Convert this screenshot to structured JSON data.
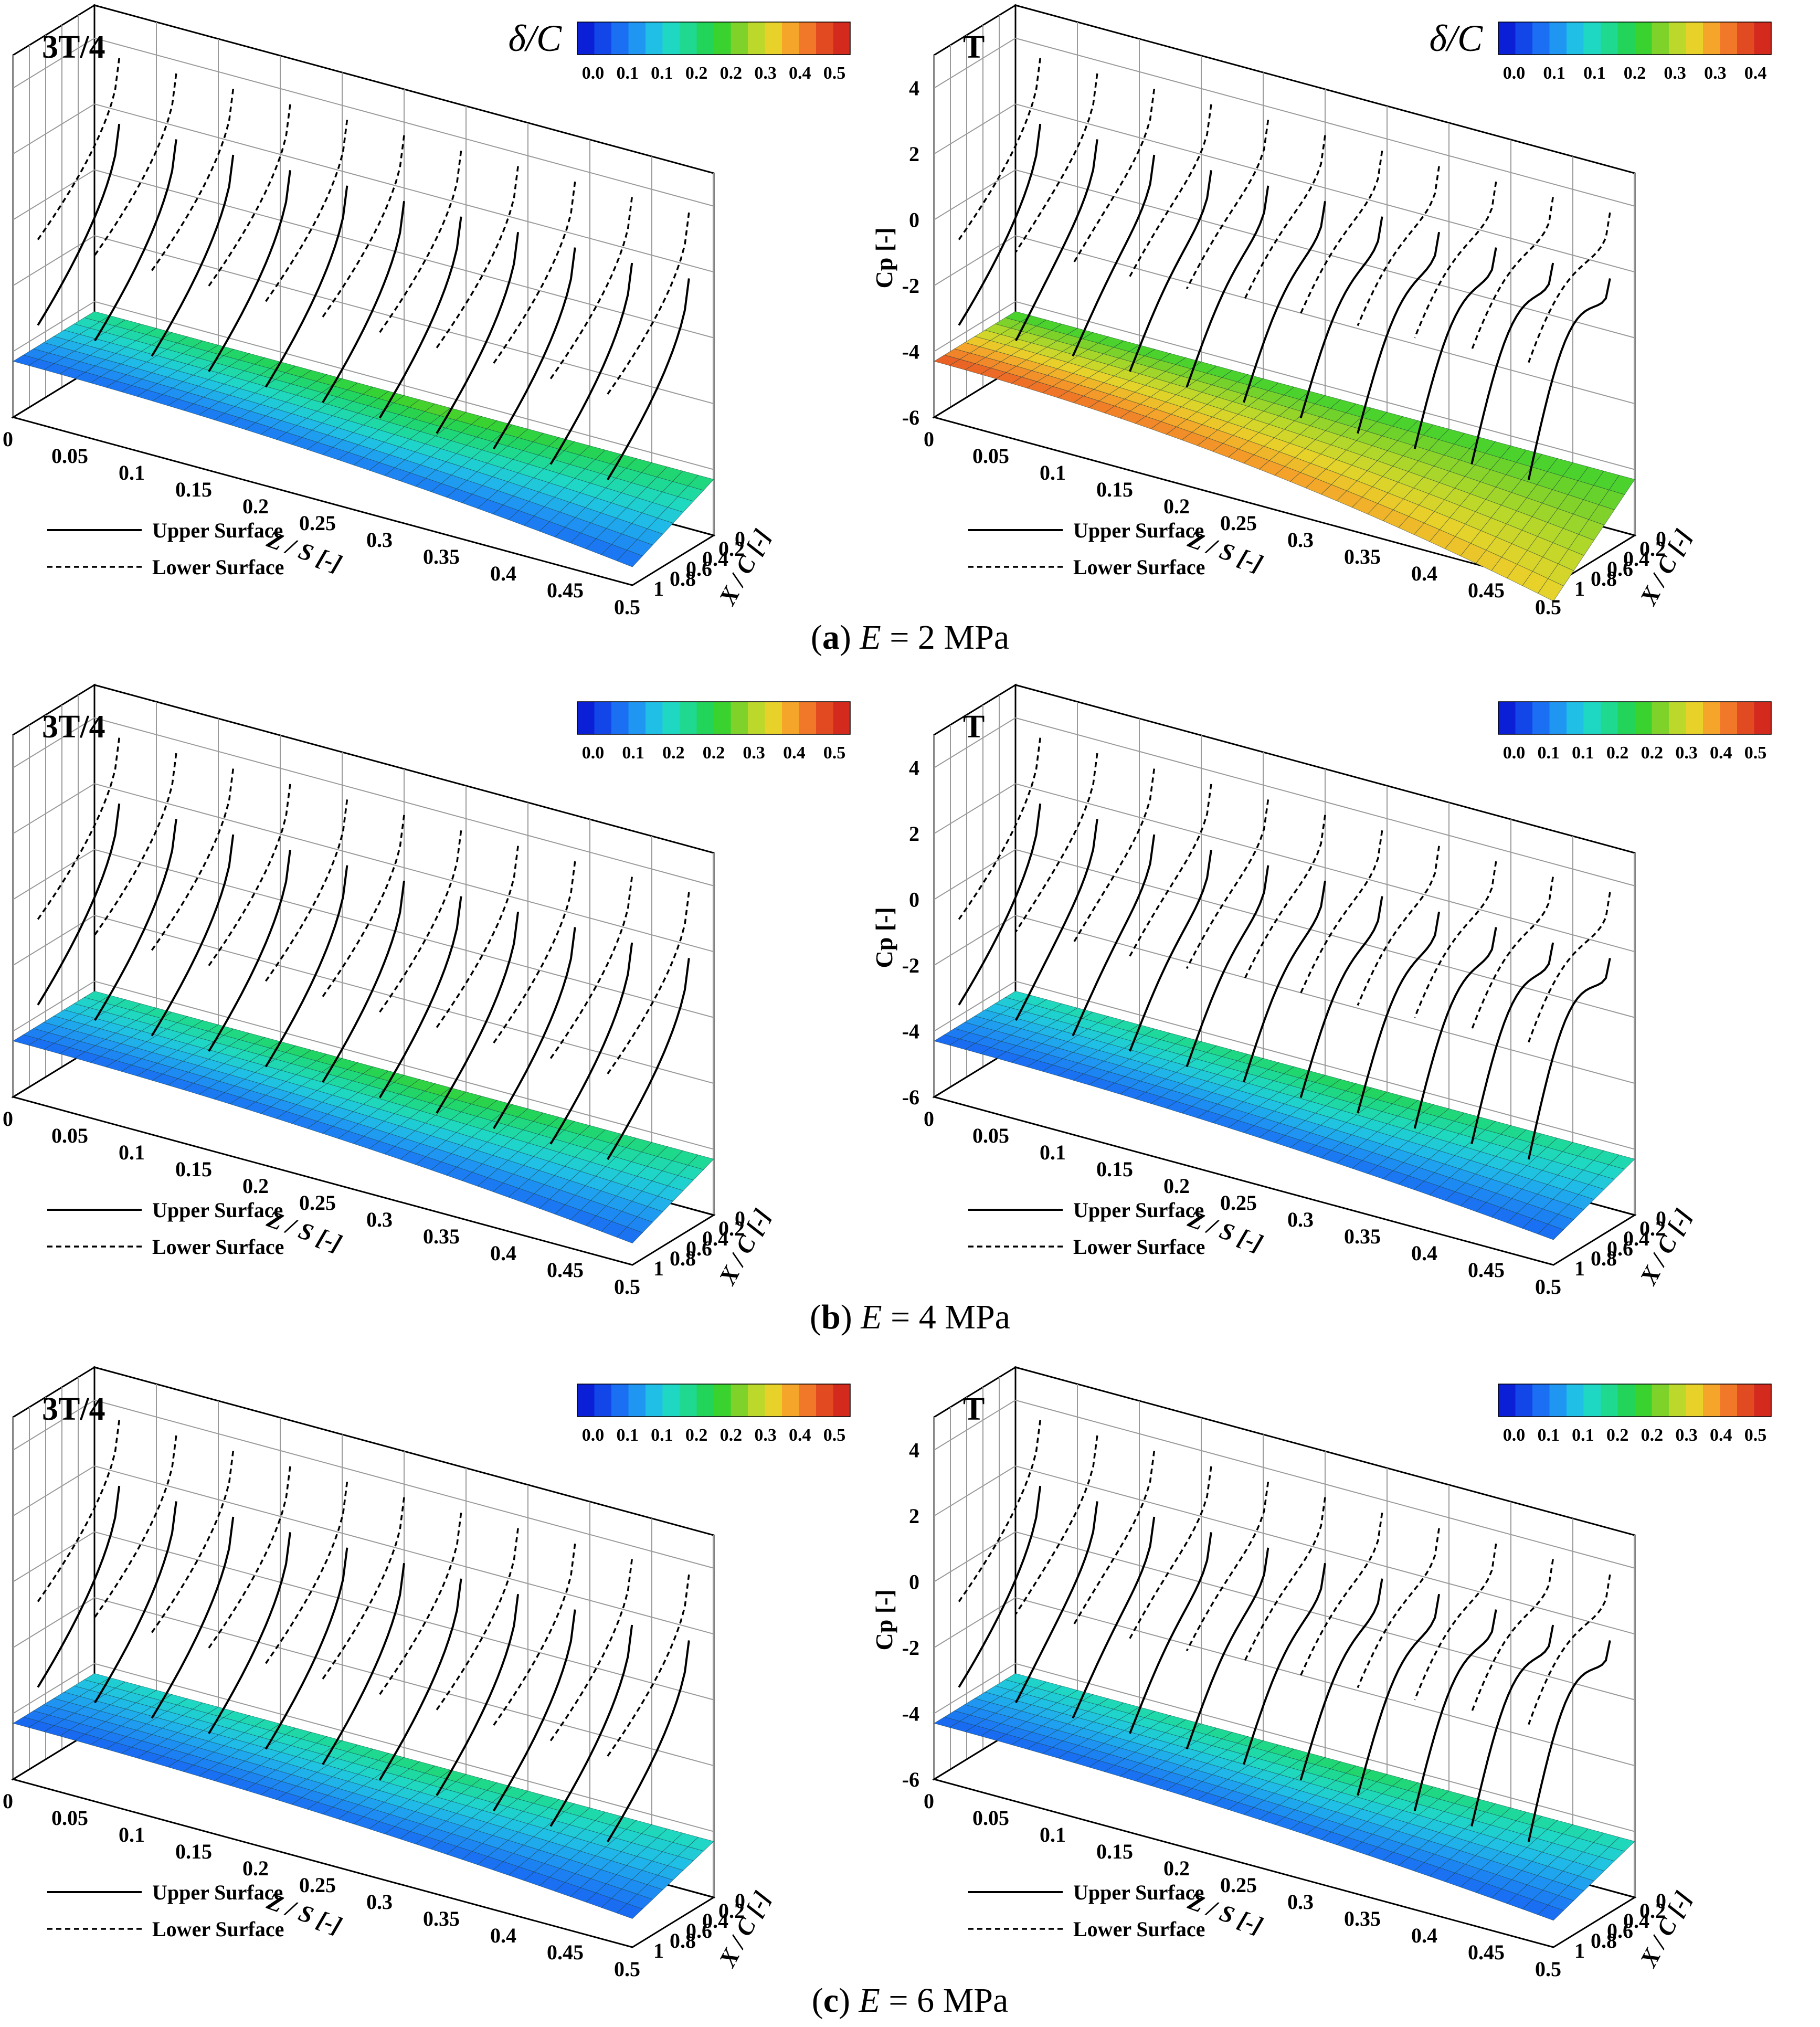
{
  "figure": {
    "rows": [
      {
        "caption": {
          "open": "(",
          "label": "a",
          "close": ")",
          "var": "E",
          "eq": " = ",
          "value": "2",
          "unit": " MPa"
        },
        "panels": [
          {
            "chart_data": {
              "type": "surface",
              "time_label": "3T/4",
              "colorbar_title": "δ/C",
              "colorbar_ticks": [
                "0.0",
                "0.1",
                "0.1",
                "0.2",
                "0.2",
                "0.3",
                "0.4",
                "0.5"
              ],
              "zlabel": "Cp [-]",
              "zticks": [
                "4",
                "2",
                "0",
                "-2",
                "-4",
                "-6"
              ],
              "xlabel": "Z / S [-]",
              "xticks": [
                "0",
                "0.05",
                "0.1",
                "0.15",
                "0.2",
                "0.25",
                "0.3",
                "0.35",
                "0.4",
                "0.45",
                "0.5"
              ],
              "ylabel": "X / C [-]",
              "yticks": [
                "0",
                "0.2",
                "0.4",
                "0.6",
                "0.8",
                "1"
              ],
              "legend": [
                {
                  "name": "Upper Surface",
                  "style": "solid"
                },
                {
                  "name": "Lower Surface",
                  "style": "dashed"
                }
              ],
              "deflection_max": 0.22,
              "cp_profiles": 11,
              "peak_shift": 0.0
            }
          },
          {
            "chart_data": {
              "type": "surface",
              "time_label": "T",
              "colorbar_title": "δ/C",
              "colorbar_ticks": [
                "0.0",
                "0.1",
                "0.1",
                "0.2",
                "0.3",
                "0.3",
                "0.4"
              ],
              "zlabel": "Cp [-]",
              "zticks": [
                "4",
                "2",
                "0",
                "-2",
                "-4",
                "-6"
              ],
              "xlabel": "Z / S [-]",
              "xticks": [
                "0",
                "0.05",
                "0.1",
                "0.15",
                "0.2",
                "0.25",
                "0.3",
                "0.35",
                "0.4",
                "0.45",
                "0.5"
              ],
              "ylabel": "X / C [-]",
              "yticks": [
                "0",
                "0.2",
                "0.4",
                "0.6",
                "0.8",
                "1"
              ],
              "legend": [
                {
                  "name": "Upper Surface",
                  "style": "solid"
                },
                {
                  "name": "Lower Surface",
                  "style": "dashed"
                }
              ],
              "deflection_max": 0.42,
              "cp_profiles": 11,
              "peak_shift": 1.0
            }
          }
        ]
      },
      {
        "caption": {
          "open": "(",
          "label": "b",
          "close": ")",
          "var": "E",
          "eq": " = ",
          "value": "4",
          "unit": " MPa"
        },
        "panels": [
          {
            "chart_data": {
              "type": "surface",
              "time_label": "3T/4",
              "colorbar_title": "",
              "colorbar_ticks": [
                "0.0",
                "0.1",
                "0.2",
                "0.2",
                "0.3",
                "0.4",
                "0.5"
              ],
              "zlabel": "Cp [-]",
              "zticks": [
                "4",
                "2",
                "0",
                "-2",
                "-4",
                "-6"
              ],
              "xlabel": "Z / S [-]",
              "xticks": [
                "0",
                "0.05",
                "0.1",
                "0.15",
                "0.2",
                "0.25",
                "0.3",
                "0.35",
                "0.4",
                "0.45",
                "0.5"
              ],
              "ylabel": "X / C [-]",
              "yticks": [
                "0",
                "0.2",
                "0.4",
                "0.6",
                "0.8",
                "1"
              ],
              "legend": [
                {
                  "name": "Upper Surface",
                  "style": "solid"
                },
                {
                  "name": "Lower Surface",
                  "style": "dashed"
                }
              ],
              "deflection_max": 0.2,
              "cp_profiles": 11,
              "peak_shift": 0.0
            }
          },
          {
            "chart_data": {
              "type": "surface",
              "time_label": "T",
              "colorbar_title": "",
              "colorbar_ticks": [
                "0.0",
                "0.1",
                "0.1",
                "0.2",
                "0.2",
                "0.3",
                "0.4",
                "0.5"
              ],
              "zlabel": "Cp [-]",
              "zticks": [
                "4",
                "2",
                "0",
                "-2",
                "-4",
                "-6"
              ],
              "xlabel": "Z / S [-]",
              "xticks": [
                "0",
                "0.05",
                "0.1",
                "0.15",
                "0.2",
                "0.25",
                "0.3",
                "0.35",
                "0.4",
                "0.45",
                "0.5"
              ],
              "ylabel": "X / C [-]",
              "yticks": [
                "0",
                "0.2",
                "0.4",
                "0.6",
                "0.8",
                "1"
              ],
              "legend": [
                {
                  "name": "Upper Surface",
                  "style": "solid"
                },
                {
                  "name": "Lower Surface",
                  "style": "dashed"
                }
              ],
              "deflection_max": 0.18,
              "cp_profiles": 11,
              "peak_shift": 1.0
            }
          }
        ]
      },
      {
        "caption": {
          "open": "(",
          "label": "c",
          "close": ")",
          "var": "E",
          "eq": " = ",
          "value": "6",
          "unit": " MPa"
        },
        "panels": [
          {
            "chart_data": {
              "type": "surface",
              "time_label": "3T/4",
              "colorbar_title": "",
              "colorbar_ticks": [
                "0.0",
                "0.1",
                "0.1",
                "0.2",
                "0.2",
                "0.3",
                "0.4",
                "0.5"
              ],
              "zlabel": "Cp [-]",
              "zticks": [
                "4",
                "2",
                "0",
                "-2",
                "-4",
                "-6"
              ],
              "xlabel": "Z / S [-]",
              "xticks": [
                "0",
                "0.05",
                "0.1",
                "0.15",
                "0.2",
                "0.25",
                "0.3",
                "0.35",
                "0.4",
                "0.45",
                "0.5"
              ],
              "ylabel": "X / C [-]",
              "yticks": [
                "0",
                "0.2",
                "0.4",
                "0.6",
                "0.8",
                "1"
              ],
              "legend": [
                {
                  "name": "Upper Surface",
                  "style": "solid"
                },
                {
                  "name": "Lower Surface",
                  "style": "dashed"
                }
              ],
              "deflection_max": 0.16,
              "cp_profiles": 11,
              "peak_shift": 0.0
            }
          },
          {
            "chart_data": {
              "type": "surface",
              "time_label": "T",
              "colorbar_title": "",
              "colorbar_ticks": [
                "0.0",
                "0.1",
                "0.1",
                "0.2",
                "0.2",
                "0.3",
                "0.4",
                "0.5"
              ],
              "zlabel": "Cp [-]",
              "zticks": [
                "4",
                "2",
                "0",
                "-2",
                "-4",
                "-6"
              ],
              "xlabel": "Z / S [-]",
              "xticks": [
                "0",
                "0.05",
                "0.1",
                "0.15",
                "0.2",
                "0.25",
                "0.3",
                "0.35",
                "0.4",
                "0.45",
                "0.5"
              ],
              "ylabel": "X / C [-]",
              "yticks": [
                "0",
                "0.2",
                "0.4",
                "0.6",
                "0.8",
                "1"
              ],
              "legend": [
                {
                  "name": "Upper Surface",
                  "style": "solid"
                },
                {
                  "name": "Lower Surface",
                  "style": "dashed"
                }
              ],
              "deflection_max": 0.17,
              "cp_profiles": 11,
              "peak_shift": 1.0
            }
          }
        ]
      }
    ],
    "colormap": [
      "#0b1fd6",
      "#1246e8",
      "#1a6ff2",
      "#1f96f2",
      "#20bfe6",
      "#1fd8c4",
      "#1ed98f",
      "#22d45a",
      "#3ad22e",
      "#7fd22a",
      "#bcd82a",
      "#e8d22a",
      "#f4a52a",
      "#f07828",
      "#e24a22",
      "#d42a1e"
    ]
  }
}
